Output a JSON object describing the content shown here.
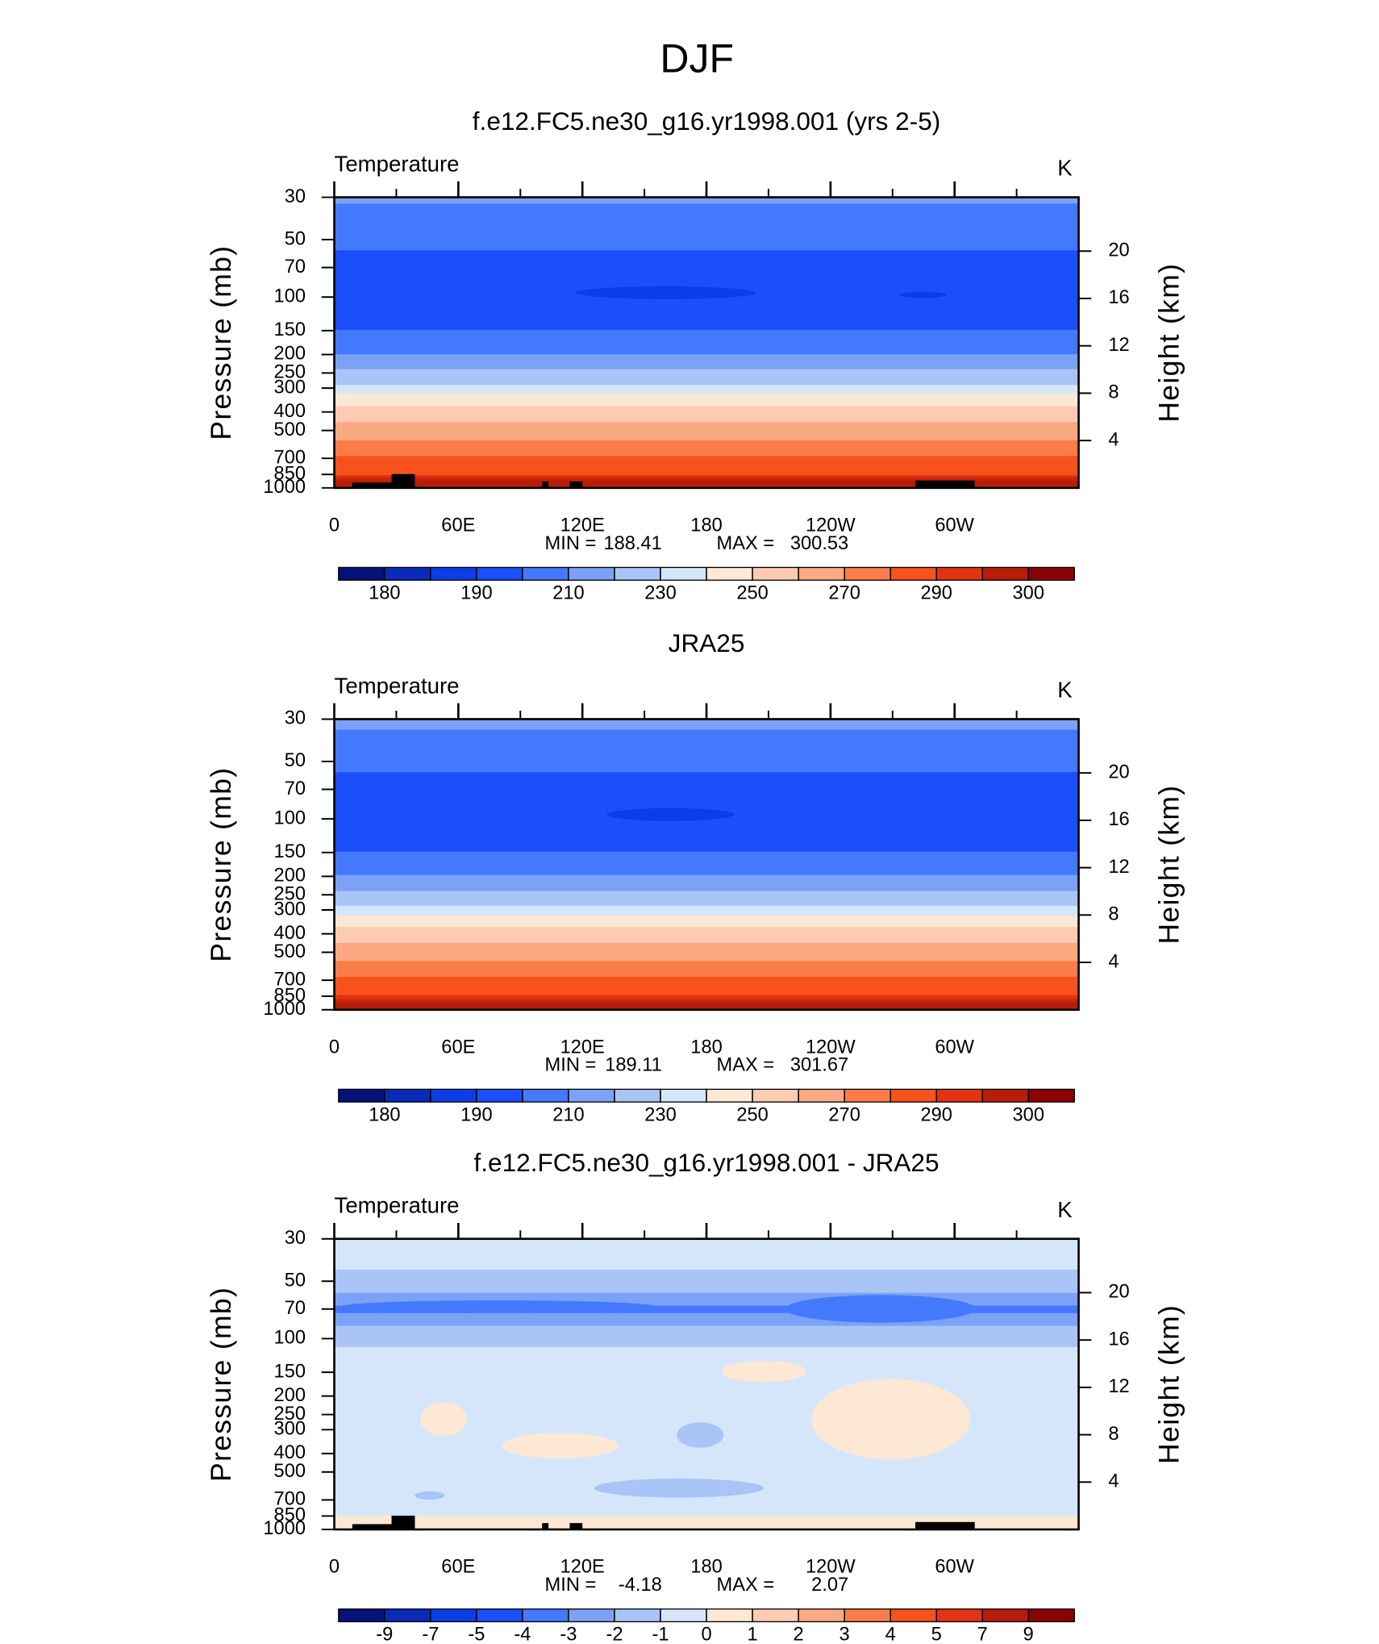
{
  "title": "DJF",
  "chart_data": [
    {
      "type": "contour",
      "title": "f.e12.FC5.ne30_g16.yr1998.001 (yrs 2-5)",
      "left_string": "Temperature",
      "right_string": "K",
      "ylabel": "Pressure (mb)",
      "y2label": "Height (km)",
      "xlim": [
        0,
        360
      ],
      "xticks": [
        0,
        {
          "value": 60,
          "label": "60E"
        },
        {
          "value": 120,
          "label": "120E"
        },
        180,
        {
          "value": 240,
          "label": "120W"
        },
        {
          "value": 300,
          "label": "60W"
        }
      ],
      "xminor": [
        30,
        90,
        150,
        210,
        270,
        330
      ],
      "ylim": [
        1000,
        30
      ],
      "log_y": true,
      "yticks": [
        30,
        50,
        70,
        100,
        150,
        200,
        250,
        300,
        400,
        500,
        700,
        850,
        1000
      ],
      "y2ticks": [
        4,
        8,
        12,
        16,
        20
      ],
      "min_label": "MIN =",
      "min": 188.41,
      "max_label": "MAX =",
      "max": 300.53,
      "levels": [
        180,
        185,
        190,
        200,
        210,
        220,
        230,
        240,
        250,
        260,
        270,
        280,
        290,
        295,
        300
      ],
      "colorbar_ticks": [
        180,
        190,
        210,
        230,
        250,
        270,
        290,
        300
      ],
      "colors": [
        "#06127a",
        "#0a2bb8",
        "#0b3ee6",
        "#1b4ffb",
        "#4479fd",
        "#7ba2f7",
        "#a9c4f6",
        "#d5e6fb",
        "#fde7d5",
        "#fccbb1",
        "#fba983",
        "#fa7d49",
        "#f8521c",
        "#e23412",
        "#b71d09",
        "#8a0202"
      ],
      "profile": {
        "pressure": [
          30,
          40,
          55,
          70,
          100,
          140,
          150,
          180,
          200,
          240,
          290,
          320,
          370,
          450,
          560,
          680,
          850,
          920,
          1000
        ],
        "values": [
          211,
          207,
          200.5,
          196,
          193,
          197,
          200.5,
          205,
          210.5,
          220.5,
          230.5,
          240.5,
          250,
          260,
          270,
          280,
          290,
          295.5,
          298
        ]
      }
    },
    {
      "type": "contour",
      "title": "JRA25",
      "left_string": "Temperature",
      "right_string": "K",
      "ylabel": "Pressure (mb)",
      "y2label": "Height (km)",
      "xlim": [
        0,
        360
      ],
      "xticks": [
        0,
        {
          "value": 60,
          "label": "60E"
        },
        {
          "value": 120,
          "label": "120E"
        },
        180,
        {
          "value": 240,
          "label": "120W"
        },
        {
          "value": 300,
          "label": "60W"
        }
      ],
      "xminor": [
        30,
        90,
        150,
        210,
        270,
        330
      ],
      "ylim": [
        1000,
        30
      ],
      "log_y": true,
      "yticks": [
        30,
        50,
        70,
        100,
        150,
        200,
        250,
        300,
        400,
        500,
        700,
        850,
        1000
      ],
      "y2ticks": [
        4,
        8,
        12,
        16,
        20
      ],
      "min_label": "MIN =",
      "min": 189.11,
      "max_label": "MAX =",
      "max": 301.67,
      "levels": [
        180,
        185,
        190,
        200,
        210,
        220,
        230,
        240,
        250,
        260,
        270,
        280,
        290,
        295,
        300
      ],
      "colorbar_ticks": [
        180,
        190,
        210,
        230,
        250,
        270,
        290,
        300
      ],
      "colors": [
        "#06127a",
        "#0a2bb8",
        "#0b3ee6",
        "#1b4ffb",
        "#4479fd",
        "#7ba2f7",
        "#a9c4f6",
        "#d5e6fb",
        "#fde7d5",
        "#fccbb1",
        "#fba983",
        "#fa7d49",
        "#f8521c",
        "#e23412",
        "#b71d09",
        "#8a0202"
      ],
      "profile": {
        "pressure": [
          30,
          40,
          55,
          70,
          100,
          140,
          150,
          180,
          200,
          240,
          290,
          320,
          370,
          450,
          560,
          680,
          850,
          920,
          1000
        ],
        "values": [
          211.5,
          208,
          200.5,
          196.5,
          194,
          197.5,
          200.5,
          205.5,
          211,
          221,
          231,
          241,
          250.5,
          260.5,
          271,
          281,
          291,
          296,
          299
        ]
      }
    },
    {
      "type": "contour",
      "title": "f.e12.FC5.ne30_g16.yr1998.001 - JRA25",
      "left_string": "Temperature",
      "right_string": "K",
      "ylabel": "Pressure (mb)",
      "y2label": "Height (km)",
      "xlim": [
        0,
        360
      ],
      "xticks": [
        0,
        {
          "value": 60,
          "label": "60E"
        },
        {
          "value": 120,
          "label": "120E"
        },
        180,
        {
          "value": 240,
          "label": "120W"
        },
        {
          "value": 300,
          "label": "60W"
        }
      ],
      "xminor": [
        30,
        90,
        150,
        210,
        270,
        330
      ],
      "ylim": [
        1000,
        30
      ],
      "log_y": true,
      "yticks": [
        30,
        50,
        70,
        100,
        150,
        200,
        250,
        300,
        400,
        500,
        700,
        850,
        1000
      ],
      "y2ticks": [
        4,
        8,
        12,
        16,
        20
      ],
      "min_label": "MIN =",
      "min": -4.18,
      "max_label": "MAX =",
      "max": 2.07,
      "levels": [
        -9,
        -7,
        -5,
        -4,
        -3,
        -2,
        -1,
        0,
        1,
        2,
        3,
        4,
        5,
        7,
        9
      ],
      "colorbar_ticks": [
        -9,
        -7,
        -5,
        -4,
        -3,
        -2,
        -1,
        0,
        1,
        2,
        3,
        4,
        5,
        7,
        9
      ],
      "colors": [
        "#06127a",
        "#0a2bb8",
        "#0b3ee6",
        "#1b4ffb",
        "#4479fd",
        "#7ba2f7",
        "#a9c4f6",
        "#d5e6fb",
        "#fde7d5",
        "#fccbb1",
        "#fba983",
        "#fa7d49",
        "#f8521c",
        "#e23412",
        "#b71d09",
        "#8a0202"
      ],
      "profile": {
        "pressure": [
          30,
          42,
          50,
          60,
          70,
          80,
          100,
          120,
          300,
          800,
          880,
          1000
        ],
        "values": [
          -0.5,
          -0.9,
          -1.5,
          -2.2,
          -3.3,
          -2.3,
          -1.2,
          -0.8,
          -0.4,
          -0.3,
          0.3,
          0.4
        ]
      }
    }
  ]
}
